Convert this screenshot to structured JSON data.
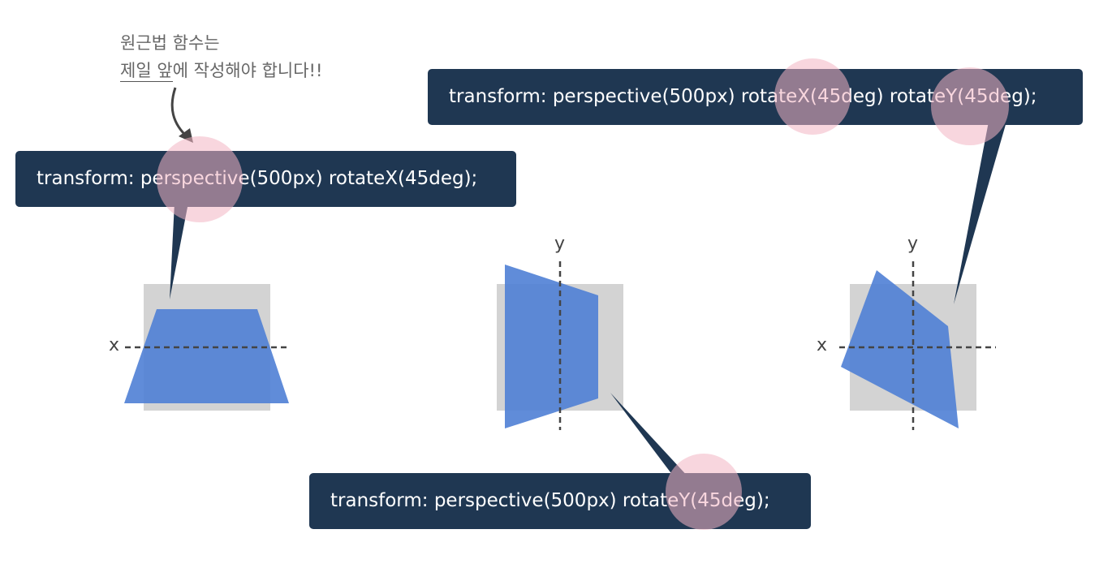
{
  "note": {
    "line1": "원근법 함수는",
    "line2_underlined": "제일 앞",
    "line2_rest": "에 작성해야 합니다!!"
  },
  "labels": {
    "rotate_x": "transform: perspective(500px) rotateX(45deg);",
    "rotate_y": "transform: perspective(500px) rotateY(45deg);",
    "rotate_xy": "transform: perspective(500px) rotateX(45deg) rotateY(45deg);"
  },
  "axes": {
    "x": "x",
    "y": "y"
  },
  "colors": {
    "label_bg": "#1f3752",
    "shape_fill": "#4f7fd5",
    "box_fill": "#d3d3d3",
    "highlight": "#f3b5c3",
    "note_text": "#666666"
  }
}
